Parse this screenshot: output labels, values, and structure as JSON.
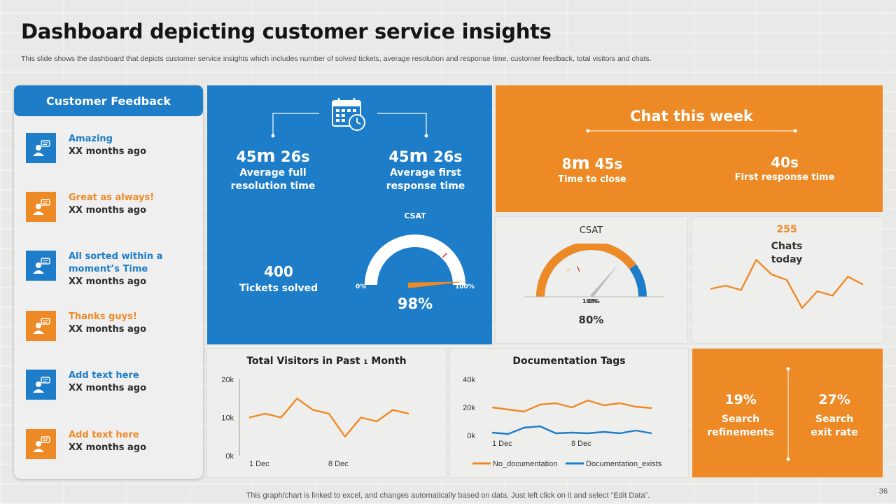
{
  "header": {
    "title": "Dashboard depicting customer service insights",
    "subtitle": "This slide shows the dashboard that depicts customer service insights which includes number of solved tickets, average resolution and response time, customer feedback, total visitors and chats."
  },
  "feedback": {
    "title": "Customer Feedback",
    "items": [
      {
        "text": "Amazing",
        "time": "XX months ago",
        "color": "#1e7dc8"
      },
      {
        "text": "Great as always!",
        "time": "XX months ago",
        "color": "#ee8a25"
      },
      {
        "text": "All sorted within a moment’s Time",
        "time": "XX months ago",
        "color": "#1e7dc8"
      },
      {
        "text": "Thanks guys!",
        "time": "XX months ago",
        "color": "#ee8a25"
      },
      {
        "text": "Add text here",
        "time": "XX months ago",
        "color": "#1e7dc8"
      },
      {
        "text": "Add text here",
        "time": "XX months ago",
        "color": "#ee8a25"
      }
    ]
  },
  "tickets": {
    "resolution_value_num": "45",
    "resolution_value_m": "m",
    "resolution_value_rest": " 26s",
    "resolution_label_1": "Average full",
    "resolution_label_2": "resolution time",
    "response_value_num": "45",
    "response_value_m": "m",
    "response_value_rest": " 26s",
    "response_label_1": "Average first",
    "response_label_2": "response time",
    "solved_value": "400",
    "solved_label": "Tickets solved",
    "csat_label": "CSAT",
    "csat_min": "0%",
    "csat_max": "100%",
    "csat_value": "98%",
    "csat_fraction": 0.98
  },
  "chat_week": {
    "title": "Chat this week",
    "close_num": "8",
    "close_m": "m",
    "close_rest": " 45s",
    "close_label": "Time to close",
    "first_response_value": "40s",
    "first_response_label": "First response time"
  },
  "csat_card": {
    "title": "CSAT",
    "value": "80%",
    "overlap_label": "100%",
    "overlap_label_2": "0%",
    "fraction": 0.8
  },
  "chats_today": {
    "value": "255",
    "label_1": "Chats",
    "label_2": "today"
  },
  "search": {
    "refinements_value": "19%",
    "refinements_label_1": "Search",
    "refinements_label_2": "refinements",
    "exit_value": "27%",
    "exit_label_1": "Search",
    "exit_label_2": "exit rate"
  },
  "chart_data": [
    {
      "type": "line",
      "title": "Total Visitors in Past 1 Month",
      "title_prefix": "Total Visitors in Past ",
      "title_num": "1",
      "title_suffix": " Month",
      "x_tick_labels": [
        "1 Dec",
        "8 Dec"
      ],
      "y_tick_labels": [
        "20k",
        "10k",
        "0k"
      ],
      "ylim": [
        0,
        20000
      ],
      "series": [
        {
          "name": "Visitors",
          "color": "#ee8a25",
          "values": [
            10000,
            11000,
            10000,
            15000,
            12000,
            11000,
            5000,
            10000,
            9000,
            12000,
            11000
          ]
        }
      ]
    },
    {
      "type": "line",
      "title": "Documentation Tags",
      "x_tick_labels": [
        "1 Dec",
        "8 Dec"
      ],
      "y_tick_labels": [
        "40k",
        "20k",
        "0k"
      ],
      "ylim": [
        0,
        40000
      ],
      "series": [
        {
          "name": "No_documentation",
          "color": "#ee8a25",
          "values": [
            20000,
            18500,
            17000,
            22000,
            23000,
            20000,
            25000,
            21500,
            23000,
            20500,
            19500
          ]
        },
        {
          "name": "Documentation_exists",
          "color": "#1e7dc8",
          "values": [
            2000,
            1000,
            5500,
            6500,
            1500,
            2000,
            1500,
            2500,
            1500,
            3500,
            1500
          ]
        }
      ]
    },
    {
      "type": "line",
      "title": "Chats today",
      "series": [
        {
          "name": "Chats",
          "color": "#ee8a25",
          "values": [
            1.2,
            1.5,
            1.1,
            3.8,
            2.5,
            2.0,
            -0.5,
            1.0,
            0.6,
            2.3,
            1.6
          ]
        }
      ]
    }
  ],
  "footer": {
    "note": "This graph/chart is linked to excel,  and changes automatically based on data. Just left click on it and select “Edit Data”.",
    "page": "36"
  }
}
